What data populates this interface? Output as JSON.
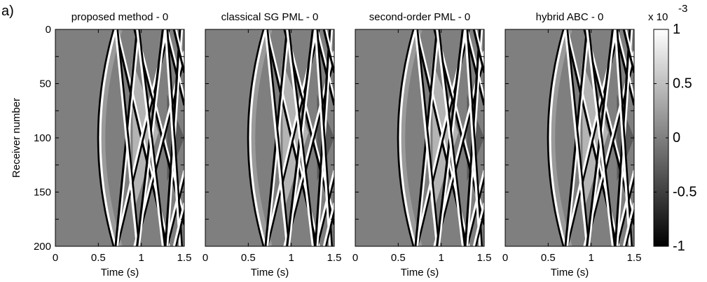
{
  "figure_label": "a)",
  "colorbar": {
    "exponent_base": "x 10",
    "exponent_power": "-3",
    "range": [
      -1,
      1
    ],
    "ticks": [
      1,
      0.5,
      0,
      -0.5,
      -1
    ],
    "tick_labels": [
      "1",
      "0.5",
      "0",
      "-0.5",
      "-1"
    ],
    "colormap": "grayscale (black=-1, white=1)"
  },
  "chart_data": [
    {
      "type": "heatmap",
      "title": "proposed method - 0",
      "xlabel": "Time (s)",
      "ylabel": "Receiver number",
      "xlim": [
        0,
        1.5
      ],
      "ylim": [
        0,
        200
      ],
      "y_reversed": true,
      "xticks": [
        0,
        0.5,
        1,
        1.5
      ],
      "xtick_labels": [
        "0",
        "0.5",
        "1",
        "1.5"
      ],
      "yticks": [
        0,
        50,
        100,
        150,
        200
      ],
      "ytick_labels": [
        "0",
        "50",
        "100",
        "150",
        "200"
      ],
      "events": [
        {
          "kind": "hyperbola",
          "apex_time": 0.5,
          "edge_time": 0.7,
          "polarity": "black-white"
        },
        {
          "kind": "crossing",
          "edge_times": [
            0.7,
            0.95,
            1.25,
            1.45
          ]
        },
        {
          "kind": "hyperbola",
          "apex_time": 0.9,
          "edge_time": 0.98,
          "polarity": "white"
        }
      ]
    },
    {
      "type": "heatmap",
      "title": "classical SG PML - 0",
      "xlabel": "Time (s)",
      "xlim": [
        0,
        1.5
      ],
      "ylim": [
        0,
        200
      ],
      "y_reversed": true,
      "xticks": [
        0,
        0.5,
        1,
        1.5
      ],
      "xtick_labels": [
        "0",
        "0.5",
        "1",
        "1.5"
      ],
      "events": [
        {
          "kind": "hyperbola",
          "apex_time": 0.5,
          "edge_time": 0.7,
          "polarity": "black-white"
        },
        {
          "kind": "crossing",
          "edge_times": [
            0.7,
            0.95,
            1.25,
            1.45
          ]
        }
      ]
    },
    {
      "type": "heatmap",
      "title": "second-order PML - 0",
      "xlabel": "Time (s)",
      "xlim": [
        0,
        1.5
      ],
      "ylim": [
        0,
        200
      ],
      "y_reversed": true,
      "xticks": [
        0,
        0.5,
        1,
        1.5
      ],
      "xtick_labels": [
        "0",
        "0.5",
        "1",
        "1.5"
      ],
      "events": [
        {
          "kind": "hyperbola",
          "apex_time": 0.5,
          "edge_time": 0.7,
          "polarity": "black-white"
        },
        {
          "kind": "crossing",
          "edge_times": [
            0.7,
            0.95,
            1.25,
            1.45
          ]
        }
      ]
    },
    {
      "type": "heatmap",
      "title": "hybrid ABC - 0",
      "xlabel": "Time (s)",
      "xlim": [
        0,
        1.5
      ],
      "ylim": [
        0,
        200
      ],
      "y_reversed": true,
      "xticks": [
        0,
        0.5,
        1,
        1.5
      ],
      "xtick_labels": [
        "0",
        "0.5",
        "1",
        "1.5"
      ],
      "events": [
        {
          "kind": "hyperbola",
          "apex_time": 0.5,
          "edge_time": 0.7,
          "polarity": "black-white"
        },
        {
          "kind": "crossing",
          "edge_times": [
            0.7,
            0.95,
            1.25,
            1.45
          ]
        }
      ]
    }
  ]
}
